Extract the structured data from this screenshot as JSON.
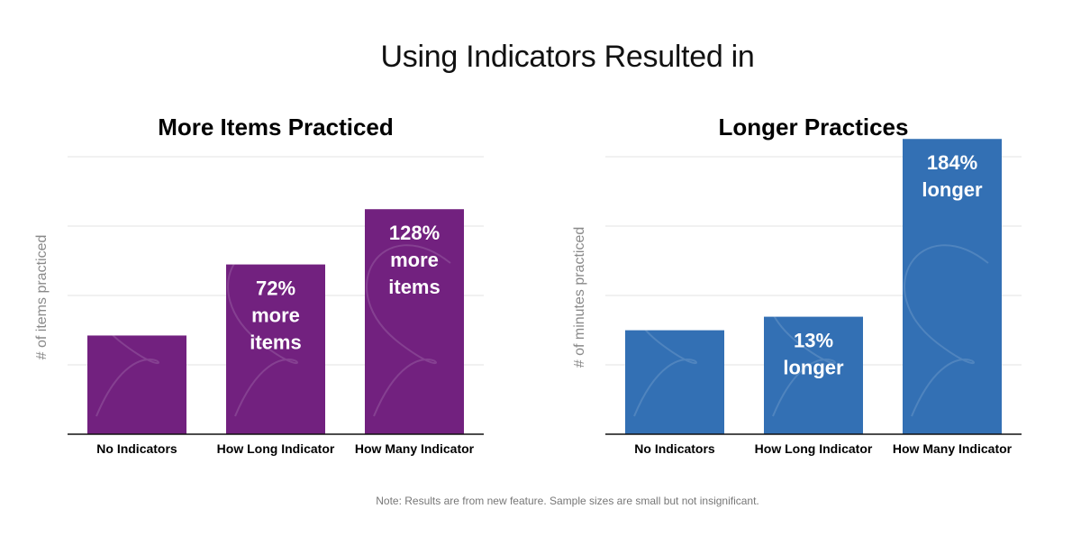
{
  "title": "Using Indicators Resulted in",
  "footnote": "Note: Results are from new feature. Sample sizes are small but not insignificant.",
  "chart_data": [
    {
      "type": "bar",
      "title": "More Items Practiced",
      "ylabel": "# of items practiced",
      "xlabel": "",
      "categories": [
        "No Indicators",
        "How Long Indicator",
        "How Many Indicator"
      ],
      "values": [
        1,
        1.72,
        2.28
      ],
      "data_labels": [
        "",
        "72%\nmore\nitems",
        "128%\nmore\nitems"
      ],
      "ylim": [
        0,
        3.35
      ],
      "grid": true,
      "color": "#72217f"
    },
    {
      "type": "bar",
      "title": "Longer Practices",
      "ylabel": "# of minutes practiced",
      "xlabel": "",
      "categories": [
        "No Indicators",
        "How Long Indicator",
        "How Many Indicator"
      ],
      "values": [
        1,
        1.13,
        2.84
      ],
      "data_labels": [
        "",
        "13%\nlonger",
        "184%\nlonger"
      ],
      "ylim": [
        0,
        3.18
      ],
      "grid": true,
      "color": "#3370b4"
    }
  ]
}
